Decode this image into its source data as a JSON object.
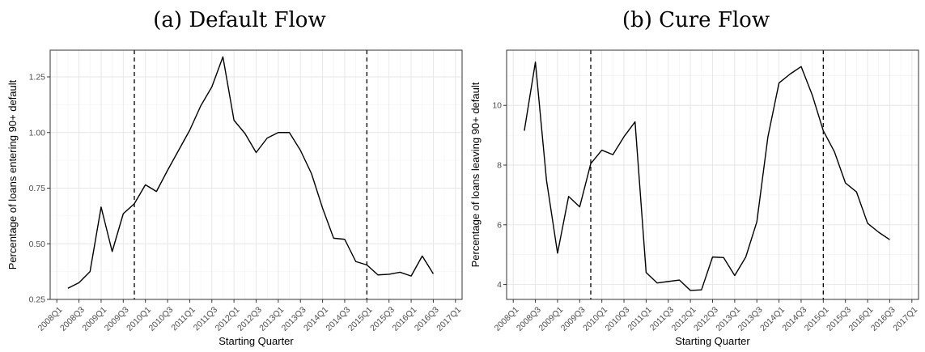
{
  "figure": {
    "panels": [
      {
        "title": "(a) Default Flow"
      },
      {
        "title": "(b) Cure Flow"
      }
    ]
  },
  "chart_data": [
    {
      "type": "line",
      "title": "(a) Default Flow",
      "xlabel": "Starting Quarter",
      "ylabel": "Percentage of loans entering 90+ default",
      "ylim": [
        0.25,
        1.37
      ],
      "yticks": [
        0.25,
        0.5,
        0.75,
        1.0,
        1.25
      ],
      "ytick_labels": [
        "0.25",
        "0.50",
        "0.75",
        "1.00",
        "1.25"
      ],
      "xtick_labels": [
        "2008Q1",
        "2008Q3",
        "2009Q1",
        "2009Q3",
        "2010Q1",
        "2010Q3",
        "2011Q1",
        "2011Q3",
        "2012Q1",
        "2012Q3",
        "2013Q1",
        "2013Q3",
        "2014Q1",
        "2014Q3",
        "2015Q1",
        "2015Q3",
        "2016Q1",
        "2016Q3",
        "2017Q1"
      ],
      "quarters": [
        "2008Q1",
        "2008Q2",
        "2008Q3",
        "2008Q4",
        "2009Q1",
        "2009Q2",
        "2009Q3",
        "2009Q4",
        "2010Q1",
        "2010Q2",
        "2010Q3",
        "2010Q4",
        "2011Q1",
        "2011Q2",
        "2011Q3",
        "2011Q4",
        "2012Q1",
        "2012Q2",
        "2012Q3",
        "2012Q4",
        "2013Q1",
        "2013Q2",
        "2013Q3",
        "2013Q4",
        "2014Q1",
        "2014Q2",
        "2014Q3",
        "2014Q4",
        "2015Q1",
        "2015Q2",
        "2015Q3",
        "2015Q4",
        "2016Q1",
        "2016Q2",
        "2016Q3",
        "2016Q4",
        "2017Q1"
      ],
      "vlines": [
        "2009Q4",
        "2015Q1"
      ],
      "grid": true,
      "series": [
        {
          "x": [
            "2008Q2",
            "2008Q3",
            "2008Q4",
            "2009Q1",
            "2009Q2",
            "2009Q3",
            "2009Q4",
            "2010Q1",
            "2010Q2",
            "2010Q3",
            "2010Q4",
            "2011Q1",
            "2011Q2",
            "2011Q3",
            "2011Q4",
            "2012Q1",
            "2012Q2",
            "2012Q3",
            "2012Q4",
            "2013Q1",
            "2013Q2",
            "2013Q3",
            "2013Q4",
            "2014Q1",
            "2014Q2",
            "2014Q3",
            "2014Q4",
            "2015Q1",
            "2015Q2",
            "2015Q3",
            "2015Q4",
            "2016Q1",
            "2016Q2",
            "2016Q3"
          ],
          "values": [
            0.3,
            0.325,
            0.375,
            0.665,
            0.465,
            0.635,
            0.68,
            0.765,
            0.735,
            0.83,
            0.92,
            1.01,
            1.12,
            1.205,
            1.34,
            1.055,
            0.995,
            0.91,
            0.975,
            1.0,
            1.0,
            0.92,
            0.815,
            0.66,
            0.525,
            0.52,
            0.42,
            0.405,
            0.36,
            0.363,
            0.372,
            0.355,
            0.445,
            0.365
          ]
        }
      ]
    },
    {
      "type": "line",
      "title": "(b) Cure Flow",
      "xlabel": "Starting Quarter",
      "ylabel": "Percentage of loans leaving 90+ default",
      "ylim": [
        3.5,
        11.85
      ],
      "yticks": [
        4,
        6,
        8,
        10
      ],
      "ytick_labels": [
        "4",
        "6",
        "8",
        "10"
      ],
      "xtick_labels": [
        "2008Q1",
        "2008Q3",
        "2009Q1",
        "2009Q3",
        "2010Q1",
        "2010Q3",
        "2011Q1",
        "2011Q3",
        "2012Q1",
        "2012Q3",
        "2013Q1",
        "2013Q3",
        "2014Q1",
        "2014Q3",
        "2015Q1",
        "2015Q3",
        "2016Q1",
        "2016Q3",
        "2017Q1"
      ],
      "quarters": [
        "2008Q1",
        "2008Q2",
        "2008Q3",
        "2008Q4",
        "2009Q1",
        "2009Q2",
        "2009Q3",
        "2009Q4",
        "2010Q1",
        "2010Q2",
        "2010Q3",
        "2010Q4",
        "2011Q1",
        "2011Q2",
        "2011Q3",
        "2011Q4",
        "2012Q1",
        "2012Q2",
        "2012Q3",
        "2012Q4",
        "2013Q1",
        "2013Q2",
        "2013Q3",
        "2013Q4",
        "2014Q1",
        "2014Q2",
        "2014Q3",
        "2014Q4",
        "2015Q1",
        "2015Q2",
        "2015Q3",
        "2015Q4",
        "2016Q1",
        "2016Q2",
        "2016Q3",
        "2016Q4",
        "2017Q1"
      ],
      "vlines": [
        "2009Q4",
        "2015Q1"
      ],
      "grid": true,
      "series": [
        {
          "x": [
            "2008Q2",
            "2008Q3",
            "2008Q4",
            "2009Q1",
            "2009Q2",
            "2009Q3",
            "2009Q4",
            "2010Q1",
            "2010Q2",
            "2010Q3",
            "2010Q4",
            "2011Q1",
            "2011Q2",
            "2011Q3",
            "2011Q4",
            "2012Q1",
            "2012Q2",
            "2012Q3",
            "2012Q4",
            "2013Q1",
            "2013Q2",
            "2013Q3",
            "2013Q4",
            "2014Q1",
            "2014Q2",
            "2014Q3",
            "2014Q4",
            "2015Q1",
            "2015Q2",
            "2015Q3",
            "2015Q4",
            "2016Q1",
            "2016Q2",
            "2016Q3"
          ],
          "values": [
            9.15,
            11.45,
            7.5,
            5.05,
            6.95,
            6.6,
            8.05,
            8.5,
            8.35,
            8.95,
            9.45,
            4.4,
            4.05,
            4.1,
            4.15,
            3.8,
            3.82,
            4.92,
            4.9,
            4.3,
            4.92,
            6.1,
            8.95,
            10.75,
            11.05,
            11.3,
            10.35,
            9.15,
            8.45,
            7.4,
            7.1,
            6.05,
            5.75,
            5.5
          ]
        }
      ]
    }
  ]
}
